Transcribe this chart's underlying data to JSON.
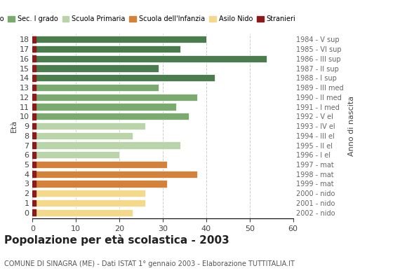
{
  "ages": [
    18,
    17,
    16,
    15,
    14,
    13,
    12,
    11,
    10,
    9,
    8,
    7,
    6,
    5,
    4,
    3,
    2,
    1,
    0
  ],
  "values": [
    40,
    34,
    54,
    29,
    42,
    29,
    38,
    33,
    36,
    26,
    23,
    34,
    20,
    31,
    38,
    31,
    26,
    26,
    23
  ],
  "bar_colors": [
    "#4a7c4e",
    "#4a7c4e",
    "#4a7c4e",
    "#4a7c4e",
    "#4a7c4e",
    "#7aaa6e",
    "#7aaa6e",
    "#7aaa6e",
    "#7aaa6e",
    "#b8d4a8",
    "#b8d4a8",
    "#b8d4a8",
    "#b8d4a8",
    "#d4813a",
    "#d4813a",
    "#d4813a",
    "#f5d98a",
    "#f5d98a",
    "#f5d98a"
  ],
  "stranieri_color": "#8b1a1a",
  "right_labels": [
    "1984 - V sup",
    "1985 - VI sup",
    "1986 - III sup",
    "1987 - II sup",
    "1988 - I sup",
    "1989 - III med",
    "1990 - II med",
    "1991 - I med",
    "1992 - V el",
    "1993 - IV el",
    "1994 - III el",
    "1995 - II el",
    "1996 - I el",
    "1997 - mat",
    "1998 - mat",
    "1999 - mat",
    "2000 - nido",
    "2001 - nido",
    "2002 - nido"
  ],
  "legend_entries": [
    {
      "label": "Sec. II grado",
      "color": "#4a7c4e"
    },
    {
      "label": "Sec. I grado",
      "color": "#7aaa6e"
    },
    {
      "label": "Scuola Primaria",
      "color": "#b8d4a8"
    },
    {
      "label": "Scuola dell'Infanzia",
      "color": "#d4813a"
    },
    {
      "label": "Asilo Nido",
      "color": "#f5d98a"
    },
    {
      "label": "Stranieri",
      "color": "#8b1a1a"
    }
  ],
  "title": "Popolazione per età scolastica - 2003",
  "subtitle": "COMUNE DI SINAGRA (ME) - Dati ISTAT 1° gennaio 2003 - Elaborazione TUTTITALIA.IT",
  "xlabel_left": "Età",
  "xlabel_right": "Anno di nascita",
  "xlim": [
    0,
    60
  ],
  "xticks": [
    0,
    10,
    20,
    30,
    40,
    50,
    60
  ],
  "grid_color": "#cccccc",
  "bg_color": "#ffffff",
  "bar_height": 0.75
}
